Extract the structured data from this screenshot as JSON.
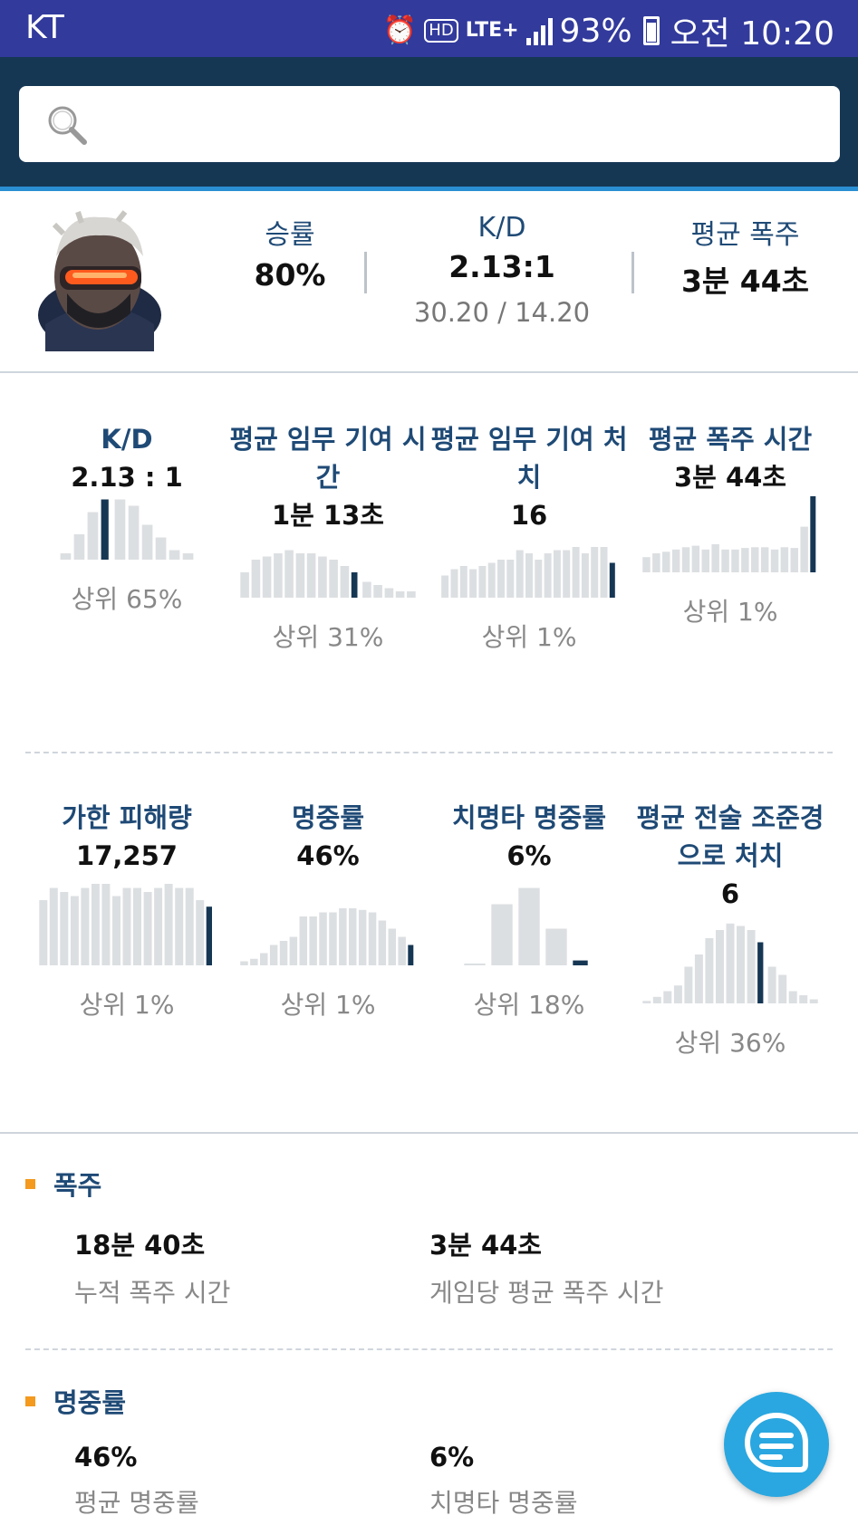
{
  "status_bar": {
    "carrier": "KT",
    "battery": "93%",
    "time": "오전 10:20",
    "network": "LTE+",
    "hd": "HD",
    "icons": [
      "alarm-icon",
      "hd-voice-icon",
      "lte-icon",
      "signal-icon",
      "battery-icon"
    ]
  },
  "search": {
    "placeholder": "",
    "icon": "search-icon"
  },
  "hero": {
    "avatar": "hero-avatar-soldier76",
    "winrate_label": "승률",
    "winrate_value": "80%",
    "kd_label": "K/D",
    "kd_value": "2.13:1",
    "kd_sub": "30.20 / 14.20",
    "ult_label": "평균 폭주",
    "ult_value": "3분 44초"
  },
  "stats": [
    {
      "title": "K/D",
      "value": "2.13 : 1",
      "percentile": "상위 65%",
      "bars": [
        0.1,
        0.4,
        0.75,
        0.95,
        0.95,
        0.85,
        0.55,
        0.35,
        0.15,
        0.1
      ],
      "highlight": 3
    },
    {
      "title": "평균 임무 기여 시간",
      "value": "1분 13초",
      "percentile": "상위 31%",
      "bars": [
        0.4,
        0.6,
        0.65,
        0.7,
        0.75,
        0.7,
        0.7,
        0.65,
        0.6,
        0.5,
        0.4,
        0.25,
        0.2,
        0.15,
        0.1,
        0.1
      ],
      "highlight": 10
    },
    {
      "title": "평균 임무 기여 처치",
      "value": "16",
      "percentile": "상위 1%",
      "bars": [
        0.35,
        0.45,
        0.5,
        0.45,
        0.5,
        0.55,
        0.6,
        0.6,
        0.75,
        0.7,
        0.6,
        0.7,
        0.75,
        0.75,
        0.8,
        0.7,
        0.8,
        0.8,
        0.55
      ],
      "highlight": 18
    },
    {
      "title": "평균 폭주 시간",
      "value": "3분 44초",
      "percentile": "상위 1%",
      "bars": [
        0.2,
        0.25,
        0.27,
        0.3,
        0.33,
        0.35,
        0.3,
        0.37,
        0.3,
        0.3,
        0.32,
        0.33,
        0.33,
        0.3,
        0.33,
        0.32,
        0.6,
        1.0
      ],
      "highlight": 17
    },
    {
      "title": "가한 피해량",
      "value": "17,257",
      "percentile": "상위 1%",
      "bars": [
        0.8,
        0.95,
        0.9,
        0.85,
        0.95,
        1.0,
        1.0,
        0.85,
        0.95,
        0.95,
        0.9,
        0.95,
        1.0,
        0.95,
        0.95,
        0.8,
        0.72
      ],
      "highlight": 16
    },
    {
      "title": "명중률",
      "value": "46%",
      "percentile": "상위 1%",
      "bars": [
        0.05,
        0.08,
        0.15,
        0.25,
        0.3,
        0.35,
        0.6,
        0.6,
        0.65,
        0.65,
        0.7,
        0.7,
        0.68,
        0.65,
        0.55,
        0.45,
        0.35,
        0.25
      ],
      "highlight": 17
    },
    {
      "title": "치명타 명중률",
      "value": "6%",
      "percentile": "상위 18%",
      "bars": [
        0.02,
        0.75,
        0.95,
        0.45,
        0.06
      ],
      "highlight": 4
    },
    {
      "title": "평균 전술 조준경으로 처치",
      "value": "6",
      "percentile": "상위 36%",
      "bars": [
        0.03,
        0.08,
        0.15,
        0.22,
        0.45,
        0.6,
        0.8,
        0.9,
        0.98,
        0.95,
        0.9,
        0.75,
        0.45,
        0.35,
        0.15,
        0.1,
        0.05
      ],
      "highlight": 11
    }
  ],
  "sections": {
    "ult": {
      "title": "폭주",
      "items": [
        {
          "value": "18분 40초",
          "label": "누적 폭주 시간"
        },
        {
          "value": "3분 44초",
          "label": "게임당 평균 폭주 시간"
        }
      ]
    },
    "accuracy": {
      "title": "명중률",
      "items": [
        {
          "value": "46%",
          "label": "평균 명중률"
        },
        {
          "value": "6%",
          "label": "치명타 명중률"
        }
      ]
    }
  },
  "chat_fab": {
    "icon": "chat-icon"
  },
  "colors": {
    "status_bar": "#323a9c",
    "header": "#163754",
    "accent": "#2a8fd3",
    "bar": "#dcdfe2",
    "bar_highlight": "#163754",
    "section_bullet": "#f39a1f",
    "fab": "#2aa7e0"
  }
}
